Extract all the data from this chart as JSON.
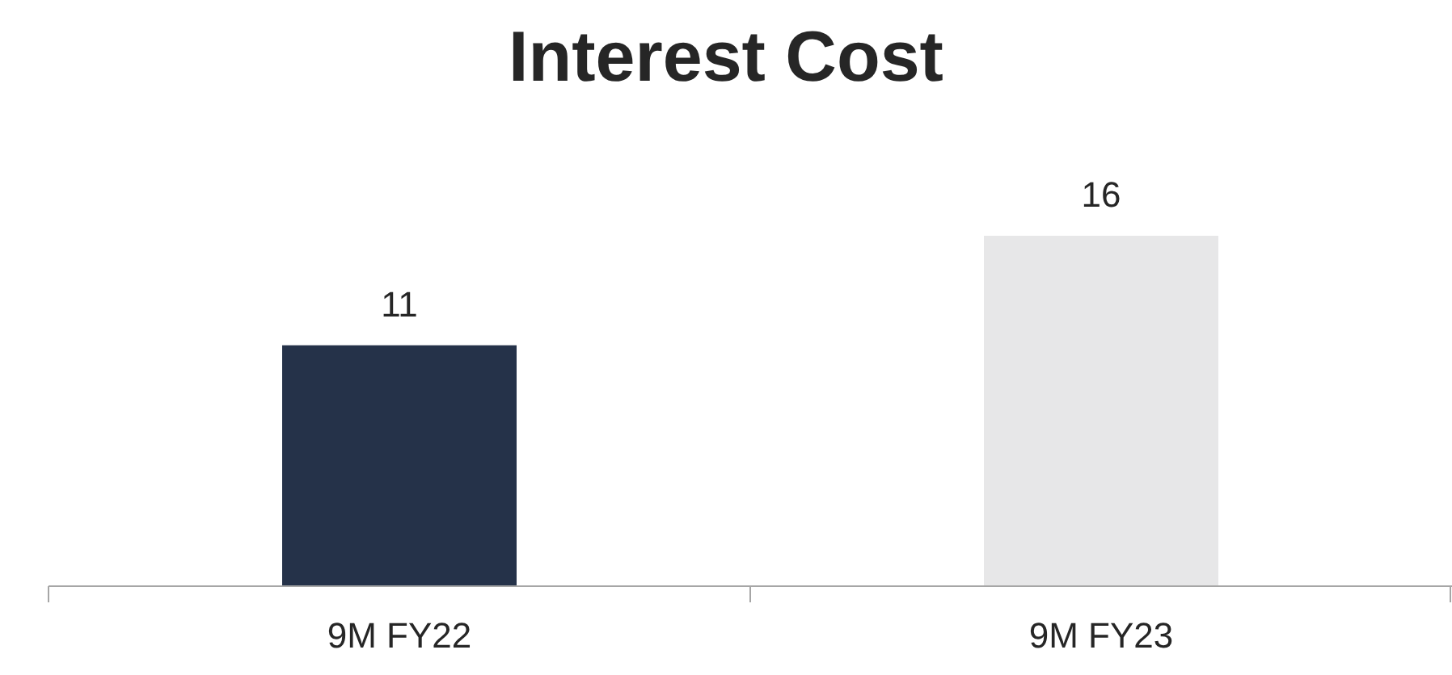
{
  "chart_data": {
    "type": "bar",
    "title": "Interest Cost",
    "categories": [
      "9M FY22",
      "9M FY23"
    ],
    "values": [
      11,
      16
    ],
    "colors": [
      "#253249",
      "#e7e7e8"
    ],
    "data_labels": true,
    "grid": false
  }
}
